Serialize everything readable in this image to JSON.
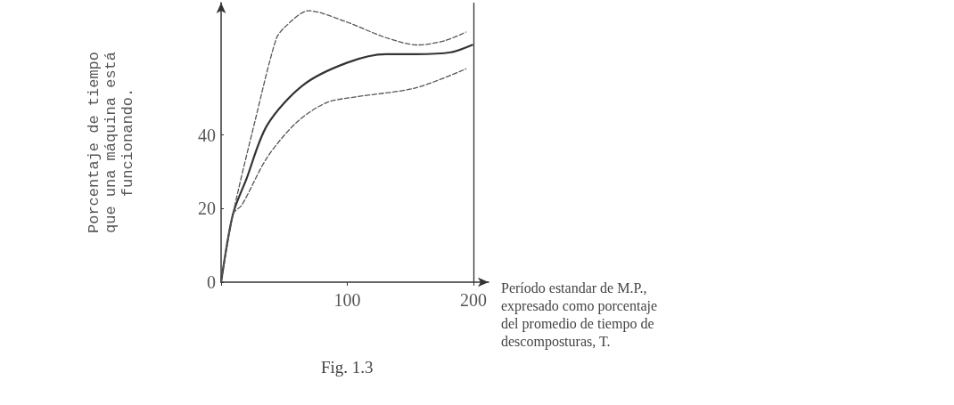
{
  "chart_data": {
    "type": "line",
    "title": "Fig. 1.3",
    "ylabel": "Porcentaje de tiempo\nque una máquina está\nfuncionando.",
    "xlabel": "Período estandar de M.P.,\nexpresado como porcentaje\ndel promedio de tiempo de\ndescomposturas, T.",
    "xlim": [
      0,
      212
    ],
    "xticks": [
      {
        "value": 0,
        "label": null
      },
      100,
      200
    ],
    "ylim": [
      0,
      76
    ],
    "yticks": [
      0,
      20,
      40
    ],
    "grid": false,
    "marker": "none",
    "ref_lines": [
      {
        "axis": "x",
        "value": 200,
        "label": null,
        "color": "#333333",
        "line_style": "solid"
      }
    ],
    "series": [
      {
        "color": "#333333",
        "line_style": "solid",
        "x": [
          0,
          9.4,
          20,
          36.5,
          65,
          100,
          130.6,
          154,
          182,
          199
        ],
        "values": [
          0,
          18.5,
          28,
          42.7,
          53.6,
          59.7,
          62,
          62,
          62.5,
          64.5
        ]
      },
      {
        "color": "#555555",
        "line_style": "dashed",
        "x": [
          0,
          9.4,
          27,
          43.5,
          50.6,
          69.4,
          97.6,
          130.6,
          156,
          177.6,
          194
        ],
        "values": [
          0,
          18.5,
          44,
          66,
          69.4,
          73.8,
          71,
          66.5,
          64.5,
          65.7,
          68
        ]
      },
      {
        "color": "#555555",
        "line_style": "dashed",
        "x": [
          0,
          9.4,
          16.5,
          36.5,
          60,
          83.5,
          107,
          154,
          194
        ],
        "values": [
          0,
          18.5,
          21,
          33.9,
          43.5,
          48.8,
          50.4,
          52.8,
          58
        ]
      }
    ]
  }
}
